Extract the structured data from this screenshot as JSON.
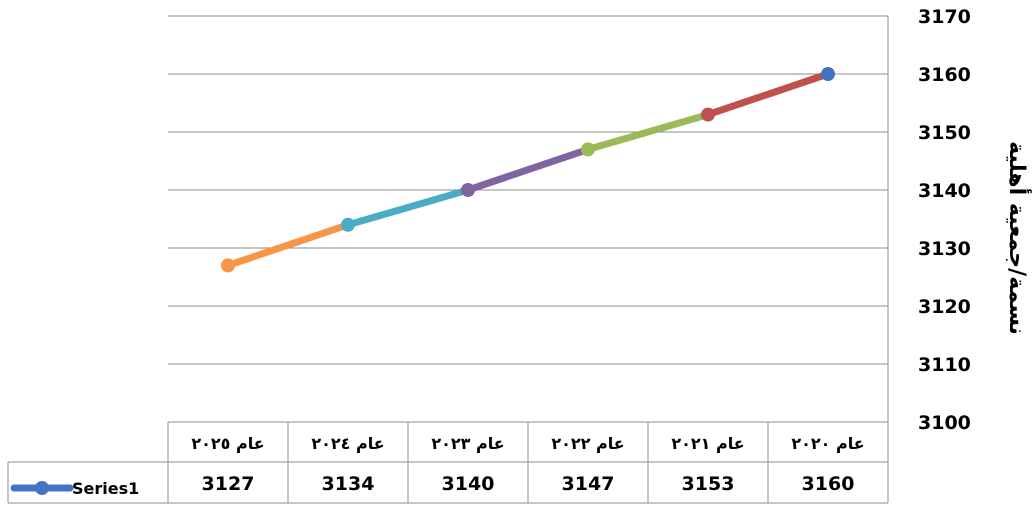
{
  "chart_data": {
    "type": "line",
    "ylabel": "نسمة/جمعية أهلية",
    "ylim": [
      3100,
      3170
    ],
    "ytick_step": 10,
    "y_axis_side": "right",
    "grid": true,
    "categories": [
      "عام ٢٠٢٠",
      "عام ٢٠٢١",
      "عام ٢٠٢٢",
      "عام ٢٠٢٣",
      "عام ٢٠٢٤",
      "عام ٢٠٢٥"
    ],
    "series": [
      {
        "name": "Series1",
        "values": [
          3160,
          3153,
          3147,
          3140,
          3134,
          3127
        ],
        "value_labels": [
          "3160",
          "3153",
          "3147",
          "3140",
          "3134",
          "3127"
        ],
        "marker_color": "#4472C4",
        "point_colors": [
          "#4472C4",
          "#C0504D",
          "#9BBB59",
          "#8064A2",
          "#4BACC6",
          "#F79646"
        ]
      }
    ],
    "data_table": true
  }
}
